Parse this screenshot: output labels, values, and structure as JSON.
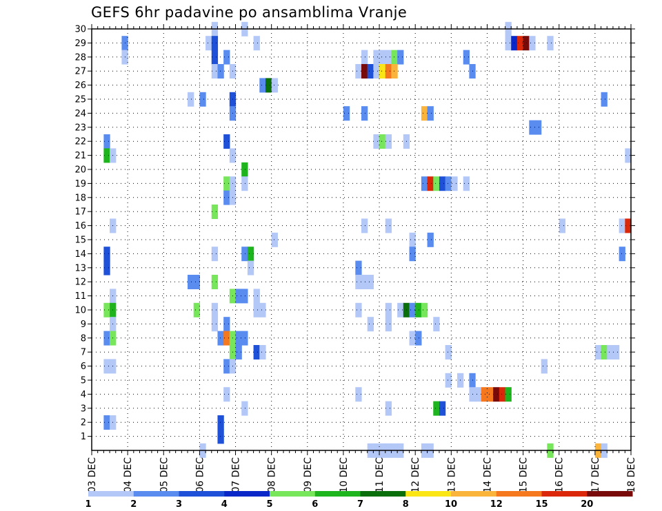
{
  "chart_data": {
    "type": "heatmap",
    "title": "GEFS 6hr padavine po ansamblima Vranje",
    "y_axis": {
      "ylim": [
        0,
        30
      ],
      "ticks": [
        1,
        2,
        3,
        4,
        5,
        6,
        7,
        8,
        9,
        10,
        11,
        12,
        13,
        14,
        15,
        16,
        17,
        18,
        19,
        20,
        21,
        22,
        23,
        24,
        25,
        26,
        27,
        28,
        29,
        30
      ]
    },
    "x_axis": {
      "ticks": [
        "03 DEC",
        "04 DEC",
        "05 DEC",
        "06 DEC",
        "07 DEC",
        "08 DEC",
        "09 DEC",
        "10 DEC",
        "11 DEC",
        "12 DEC",
        "13 DEC",
        "14 DEC",
        "15 DEC",
        "16 DEC",
        "17 DEC",
        "18 DEC"
      ]
    },
    "grid": true,
    "legend": {
      "placement": "bottom",
      "levels": [
        "1",
        "2",
        "3",
        "4",
        "5",
        "6",
        "7",
        "8",
        "10",
        "12",
        "15",
        "20"
      ],
      "colors": [
        "#b4c8f8",
        "#5a8cf0",
        "#1e50d8",
        "#0a28c8",
        "#78e65a",
        "#1eb41e",
        "#0a6e0a",
        "#fae614",
        "#fab43c",
        "#f5781e",
        "#dc280a",
        "#780a0a"
      ]
    },
    "cells": [
      [
        20.5,
        30,
        1
      ],
      [
        25.5,
        30,
        1
      ],
      [
        69.5,
        30,
        1
      ],
      [
        5.5,
        29,
        2
      ],
      [
        19.5,
        29,
        1
      ],
      [
        20.5,
        29,
        3
      ],
      [
        27.5,
        29,
        1
      ],
      [
        69.5,
        29,
        1
      ],
      [
        70.5,
        29,
        4
      ],
      [
        71.5,
        29,
        15
      ],
      [
        72.5,
        29,
        20
      ],
      [
        73.5,
        29,
        1
      ],
      [
        76.5,
        29,
        1
      ],
      [
        5.5,
        28,
        1
      ],
      [
        20.5,
        28,
        3
      ],
      [
        22.5,
        28,
        2
      ],
      [
        45.5,
        28,
        1
      ],
      [
        47.5,
        28,
        1
      ],
      [
        48.5,
        28,
        1
      ],
      [
        49.5,
        28,
        1
      ],
      [
        50.5,
        28,
        5
      ],
      [
        51.5,
        28,
        2
      ],
      [
        62.5,
        28,
        2
      ],
      [
        20.5,
        27,
        1
      ],
      [
        21.5,
        27,
        2
      ],
      [
        23.5,
        27,
        1
      ],
      [
        44.5,
        27,
        1
      ],
      [
        45.5,
        27,
        20
      ],
      [
        46.5,
        27,
        3
      ],
      [
        47.5,
        27,
        1
      ],
      [
        48.5,
        27,
        8
      ],
      [
        49.5,
        27,
        12
      ],
      [
        50.5,
        27,
        10
      ],
      [
        63.5,
        27,
        2
      ],
      [
        28.5,
        26,
        2
      ],
      [
        29.5,
        26,
        7
      ],
      [
        30.5,
        26,
        1
      ],
      [
        16.5,
        25,
        1
      ],
      [
        18.5,
        25,
        2
      ],
      [
        23.5,
        25,
        3
      ],
      [
        85.5,
        25,
        2
      ],
      [
        23.5,
        24,
        2
      ],
      [
        42.5,
        24,
        2
      ],
      [
        45.5,
        24,
        2
      ],
      [
        55.5,
        24,
        10
      ],
      [
        56.5,
        24,
        2
      ],
      [
        73.5,
        23,
        2
      ],
      [
        74.5,
        23,
        2
      ],
      [
        2.5,
        22,
        2
      ],
      [
        22.5,
        22,
        3
      ],
      [
        47.5,
        22,
        1
      ],
      [
        48.5,
        22,
        5
      ],
      [
        49.5,
        22,
        1
      ],
      [
        52.5,
        22,
        1
      ],
      [
        2.5,
        21,
        6
      ],
      [
        3.5,
        21,
        1
      ],
      [
        23.5,
        21,
        1
      ],
      [
        89.5,
        21,
        1
      ],
      [
        25.5,
        20,
        6
      ],
      [
        22.5,
        19,
        5
      ],
      [
        23.5,
        19,
        1
      ],
      [
        25.5,
        19,
        1
      ],
      [
        55.5,
        19,
        2
      ],
      [
        56.5,
        19,
        15
      ],
      [
        57.5,
        19,
        5
      ],
      [
        58.5,
        19,
        3
      ],
      [
        59.5,
        19,
        2
      ],
      [
        60.5,
        19,
        1
      ],
      [
        62.5,
        19,
        1
      ],
      [
        22.5,
        18,
        2
      ],
      [
        23.5,
        18,
        1
      ],
      [
        20.5,
        17,
        5
      ],
      [
        3.5,
        16,
        1
      ],
      [
        45.5,
        16,
        1
      ],
      [
        49.5,
        16,
        1
      ],
      [
        78.5,
        16,
        1
      ],
      [
        88.5,
        16,
        1
      ],
      [
        89.5,
        16,
        15
      ],
      [
        30.5,
        15,
        1
      ],
      [
        53.5,
        15,
        1
      ],
      [
        56.5,
        15,
        2
      ],
      [
        2.5,
        14,
        3
      ],
      [
        20.5,
        14,
        1
      ],
      [
        25.5,
        14,
        2
      ],
      [
        26.5,
        14,
        6
      ],
      [
        53.5,
        14,
        2
      ],
      [
        88.5,
        14,
        2
      ],
      [
        2.5,
        13,
        3
      ],
      [
        26.5,
        13,
        1
      ],
      [
        44.5,
        13,
        2
      ],
      [
        16.5,
        12,
        2
      ],
      [
        17.5,
        12,
        2
      ],
      [
        20.5,
        12,
        5
      ],
      [
        44.5,
        12,
        1
      ],
      [
        45.5,
        12,
        1
      ],
      [
        46.5,
        12,
        1
      ],
      [
        3.5,
        11,
        1
      ],
      [
        23.5,
        11,
        5
      ],
      [
        24.5,
        11,
        2
      ],
      [
        25.5,
        11,
        2
      ],
      [
        27.5,
        11,
        1
      ],
      [
        2.5,
        10,
        5
      ],
      [
        3.5,
        10,
        6
      ],
      [
        17.5,
        10,
        5
      ],
      [
        20.5,
        10,
        1
      ],
      [
        27.5,
        10,
        1
      ],
      [
        28.5,
        10,
        1
      ],
      [
        44.5,
        10,
        1
      ],
      [
        49.5,
        10,
        1
      ],
      [
        51.5,
        10,
        1
      ],
      [
        52.5,
        10,
        7
      ],
      [
        53.5,
        10,
        2
      ],
      [
        54.5,
        10,
        6
      ],
      [
        55.5,
        10,
        5
      ],
      [
        3.5,
        9,
        1
      ],
      [
        20.5,
        9,
        1
      ],
      [
        22.5,
        9,
        2
      ],
      [
        46.5,
        9,
        1
      ],
      [
        49.5,
        9,
        1
      ],
      [
        57.5,
        9,
        1
      ],
      [
        2.5,
        8,
        2
      ],
      [
        3.5,
        8,
        5
      ],
      [
        21.5,
        8,
        2
      ],
      [
        22.5,
        8,
        12
      ],
      [
        23.5,
        8,
        5
      ],
      [
        24.5,
        8,
        2
      ],
      [
        25.5,
        8,
        2
      ],
      [
        53.5,
        8,
        1
      ],
      [
        54.5,
        8,
        2
      ],
      [
        23.5,
        7,
        5
      ],
      [
        24.5,
        7,
        2
      ],
      [
        27.5,
        7,
        3
      ],
      [
        28.5,
        7,
        1
      ],
      [
        59.5,
        7,
        1
      ],
      [
        84.5,
        7,
        1
      ],
      [
        85.5,
        7,
        5
      ],
      [
        86.5,
        7,
        1
      ],
      [
        87.5,
        7,
        1
      ],
      [
        2.5,
        6,
        1
      ],
      [
        3.5,
        6,
        1
      ],
      [
        22.5,
        6,
        2
      ],
      [
        23.5,
        6,
        1
      ],
      [
        75.5,
        6,
        1
      ],
      [
        59.5,
        5,
        1
      ],
      [
        61.5,
        5,
        1
      ],
      [
        63.5,
        5,
        2
      ],
      [
        22.5,
        4,
        1
      ],
      [
        44.5,
        4,
        1
      ],
      [
        63.5,
        4,
        1
      ],
      [
        64.5,
        4,
        1
      ],
      [
        65.5,
        4,
        12
      ],
      [
        66.5,
        4,
        12
      ],
      [
        67.5,
        4,
        20
      ],
      [
        68.5,
        4,
        15
      ],
      [
        69.5,
        4,
        6
      ],
      [
        25.5,
        3,
        1
      ],
      [
        49.5,
        3,
        1
      ],
      [
        57.5,
        3,
        6
      ],
      [
        58.5,
        3,
        3
      ],
      [
        2.5,
        2,
        2
      ],
      [
        3.5,
        2,
        1
      ],
      [
        21.5,
        2,
        3
      ],
      [
        21.5,
        1,
        3
      ],
      [
        18.5,
        0,
        1
      ],
      [
        46.5,
        0,
        1
      ],
      [
        47.5,
        0,
        1
      ],
      [
        48.5,
        0,
        1
      ],
      [
        49.5,
        0,
        1
      ],
      [
        50.5,
        0,
        1
      ],
      [
        51.5,
        0,
        1
      ],
      [
        55.5,
        0,
        1
      ],
      [
        56.5,
        0,
        1
      ],
      [
        76.5,
        0,
        5
      ],
      [
        84.5,
        0,
        10
      ],
      [
        85.5,
        0,
        1
      ]
    ]
  }
}
